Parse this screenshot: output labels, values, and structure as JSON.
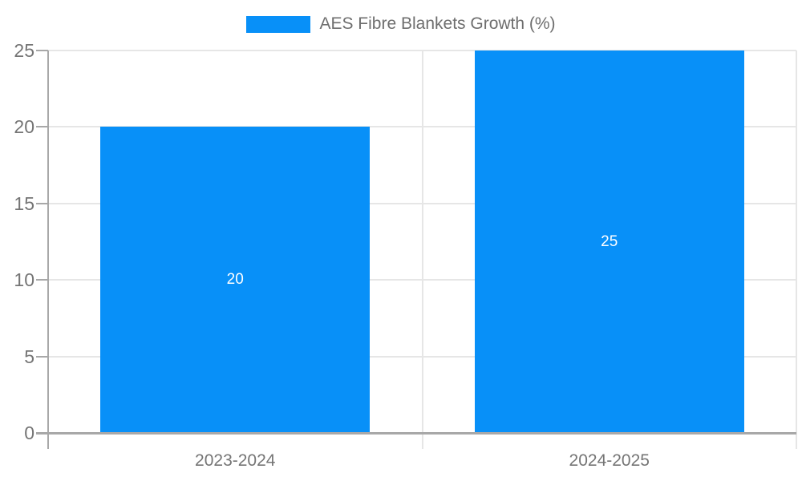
{
  "legend": {
    "label": "AES Fibre Blankets Growth (%)"
  },
  "chart_data": {
    "type": "bar",
    "title": "",
    "legend_label": "AES Fibre Blankets Growth (%)",
    "legend_position": "top-center",
    "categories": [
      "2023-2024",
      "2024-2025"
    ],
    "values": [
      20,
      25
    ],
    "bar_value_labels": [
      "20",
      "25"
    ],
    "xlabel": "",
    "ylabel": "",
    "ylim": [
      0,
      25
    ],
    "yticks": [
      0,
      5,
      10,
      15,
      20,
      25
    ],
    "grid": true,
    "colors": {
      "bar": "#0890F8",
      "axis": "#a8a8a8",
      "gridline": "#e6e6e6",
      "tick_label": "#757575",
      "legend_text": "#6e6e6e",
      "bar_label": "#ffffff",
      "background": "#ffffff"
    }
  }
}
